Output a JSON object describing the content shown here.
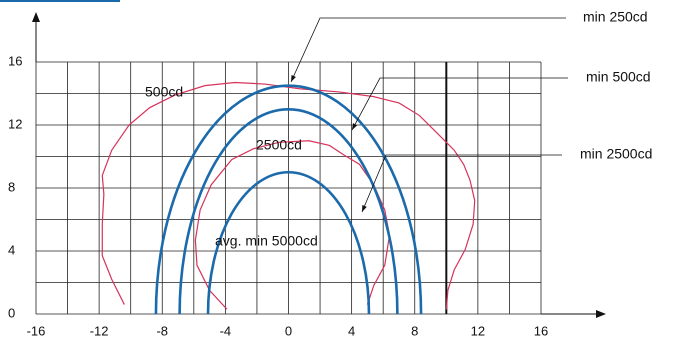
{
  "chart_data": {
    "type": "isocandela",
    "xlim": [
      -16,
      16
    ],
    "ylim": [
      0,
      16
    ],
    "xticks": [
      -16,
      -12,
      -8,
      -4,
      0,
      4,
      8,
      12,
      16
    ],
    "yticks": [
      0,
      4,
      8,
      12,
      16
    ],
    "xgrid": [
      -16,
      -14,
      -12,
      -10,
      -8,
      -6,
      -4,
      -2,
      0,
      2,
      4,
      6,
      8,
      10,
      12,
      14,
      16
    ],
    "ygrid": [
      0,
      2,
      4,
      6,
      8,
      10,
      12,
      14,
      16
    ],
    "grid": true,
    "marker_x": 10,
    "ellipses": [
      {
        "name": "min 250cd",
        "color": "#1b6aab",
        "rx": 8.4,
        "ry": 14.5
      },
      {
        "name": "min 500cd",
        "color": "#1b6aab",
        "rx": 6.9,
        "ry": 13
      },
      {
        "name": "min 2500cd",
        "color": "#1b6aab",
        "rx": 5.1,
        "ry": 9
      }
    ],
    "center_label": "avg. min 5000cd",
    "contours": [
      {
        "name": "500cd",
        "color": "#d6335b",
        "x": [
          -10.4,
          -11.2,
          -11.8,
          -11.8,
          -11.7,
          -11.8,
          -11.2,
          -10.1,
          -8.8,
          -7.2,
          -5.3,
          -3.4,
          -1.5,
          0.7,
          3.2,
          5.4,
          7.0,
          8.3,
          9.2,
          10.5,
          11.1,
          11.5,
          11.8,
          11.7,
          11.2,
          10.5,
          10.1,
          10.0
        ],
        "y": [
          0.6,
          2.2,
          3.7,
          5.7,
          7.6,
          8.8,
          10.4,
          12.0,
          13.1,
          13.9,
          14.5,
          14.7,
          14.6,
          14.3,
          14.1,
          13.8,
          13.4,
          12.6,
          11.7,
          10.4,
          9.5,
          8.5,
          7.2,
          5.7,
          4.1,
          2.8,
          1.5,
          0.3
        ]
      },
      {
        "name": "2500cd",
        "color": "#d6335b",
        "x": [
          -3.9,
          -5.0,
          -5.8,
          -5.9,
          -5.6,
          -4.9,
          -3.6,
          -2.2,
          -0.6,
          1.3,
          2.6,
          3.5,
          4.5,
          5.4,
          6.1,
          6.4,
          6.1,
          5.4,
          5.0
        ],
        "y": [
          0.3,
          1.5,
          3.1,
          4.7,
          6.6,
          8.2,
          9.8,
          10.5,
          10.9,
          11.0,
          10.7,
          10.1,
          9.5,
          8.2,
          6.6,
          5.0,
          3.1,
          1.8,
          0.6
        ]
      }
    ]
  }
}
